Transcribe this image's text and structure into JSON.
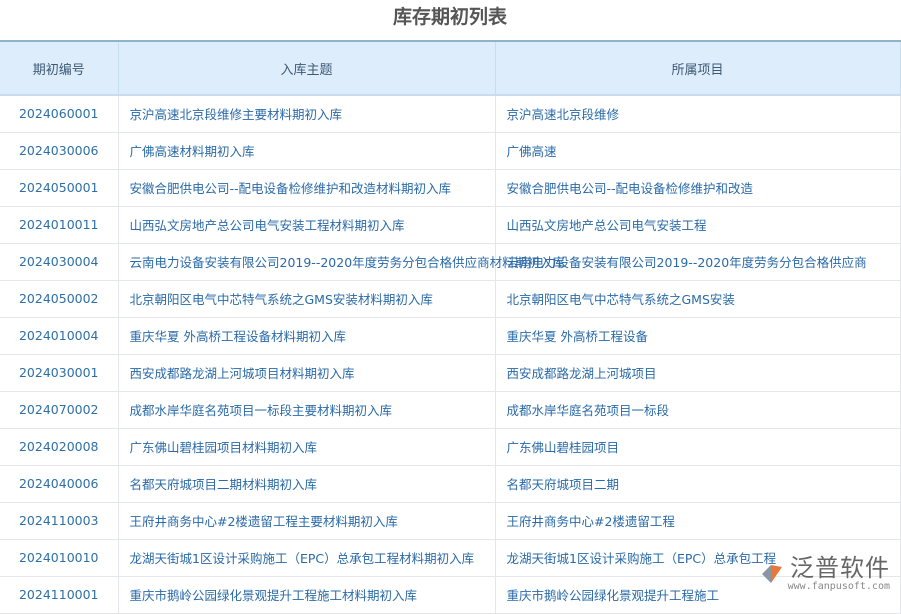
{
  "title": "库存期初列表",
  "headers": [
    "期初编号",
    "入库主题",
    "所属项目"
  ],
  "rows": [
    [
      "2024060001",
      "京沪高速北京段维修主要材料期初入库",
      "京沪高速北京段维修"
    ],
    [
      "2024030006",
      "广佛高速材料期初入库",
      "广佛高速"
    ],
    [
      "2024050001",
      "安徽合肥供电公司--配电设备检修维护和改造材料期初入库",
      "安徽合肥供电公司--配电设备检修维护和改造"
    ],
    [
      "2024010011",
      "山西弘文房地产总公司电气安装工程材料期初入库",
      "山西弘文房地产总公司电气安装工程"
    ],
    [
      "2024030004",
      "云南电力设备安装有限公司2019--2020年度劳务分包合格供应商材料期初入库",
      "云南电力设备安装有限公司2019--2020年度劳务分包合格供应商"
    ],
    [
      "2024050002",
      "北京朝阳区电气中芯特气系统之GMS安装材料期初入库",
      "北京朝阳区电气中芯特气系统之GMS安装"
    ],
    [
      "2024010004",
      "重庆华夏 外高桥工程设备材料期初入库",
      "重庆华夏 外高桥工程设备"
    ],
    [
      "2024030001",
      "西安成都路龙湖上河城项目材料期初入库",
      "西安成都路龙湖上河城项目"
    ],
    [
      "2024070002",
      "成都水岸华庭名苑项目一标段主要材料期初入库",
      "成都水岸华庭名苑项目一标段"
    ],
    [
      "2024020008",
      "广东佛山碧桂园项目材料期初入库",
      "广东佛山碧桂园项目"
    ],
    [
      "2024040006",
      "名都天府城项目二期材料期初入库",
      "名都天府城项目二期"
    ],
    [
      "2024110003",
      "王府井商务中心#2楼遗留工程主要材料期初入库",
      "王府井商务中心#2楼遗留工程"
    ],
    [
      "2024010010",
      "龙湖天街城1区设计采购施工（EPC）总承包工程材料期初入库",
      "龙湖天街城1区设计采购施工（EPC）总承包工程"
    ],
    [
      "2024110001",
      "重庆市鹅岭公园绿化景观提升工程施工材料期初入库",
      "重庆市鹅岭公园绿化景观提升工程施工"
    ]
  ],
  "watermark": {
    "name": "泛普软件",
    "url": "www.fanpusoft.com"
  }
}
